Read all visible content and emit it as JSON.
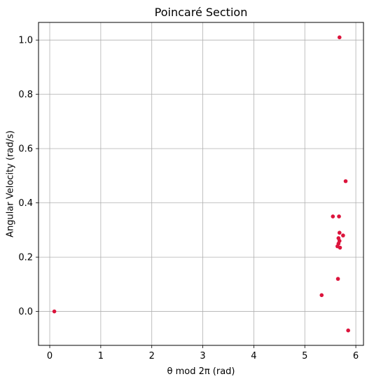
{
  "chart_data": {
    "type": "scatter",
    "title": "Poincaré Section",
    "xlabel": "θ mod 2π (rad)",
    "ylabel": "Angular Velocity (rad/s)",
    "xlim": [
      -0.22,
      6.15
    ],
    "ylim": [
      -0.125,
      1.065
    ],
    "xticks": [
      0,
      1,
      2,
      3,
      4,
      5,
      6
    ],
    "yticks": [
      0.0,
      0.2,
      0.4,
      0.6,
      0.8,
      1.0
    ],
    "xtick_labels": [
      "0",
      "1",
      "2",
      "3",
      "4",
      "5",
      "6"
    ],
    "ytick_labels": [
      "0.0",
      "0.2",
      "0.4",
      "0.6",
      "0.8",
      "1.0"
    ],
    "grid": true,
    "marker_color": "#dc143c",
    "points": [
      {
        "x": 0.09,
        "y": 0.0
      },
      {
        "x": 5.33,
        "y": 0.06
      },
      {
        "x": 5.65,
        "y": 0.12
      },
      {
        "x": 5.85,
        "y": -0.07
      },
      {
        "x": 5.68,
        "y": 1.01
      },
      {
        "x": 5.8,
        "y": 0.48
      },
      {
        "x": 5.55,
        "y": 0.35
      },
      {
        "x": 5.67,
        "y": 0.35
      },
      {
        "x": 5.68,
        "y": 0.29
      },
      {
        "x": 5.75,
        "y": 0.28
      },
      {
        "x": 5.66,
        "y": 0.27
      },
      {
        "x": 5.68,
        "y": 0.26
      },
      {
        "x": 5.66,
        "y": 0.25
      },
      {
        "x": 5.64,
        "y": 0.24
      },
      {
        "x": 5.69,
        "y": 0.235
      }
    ]
  }
}
